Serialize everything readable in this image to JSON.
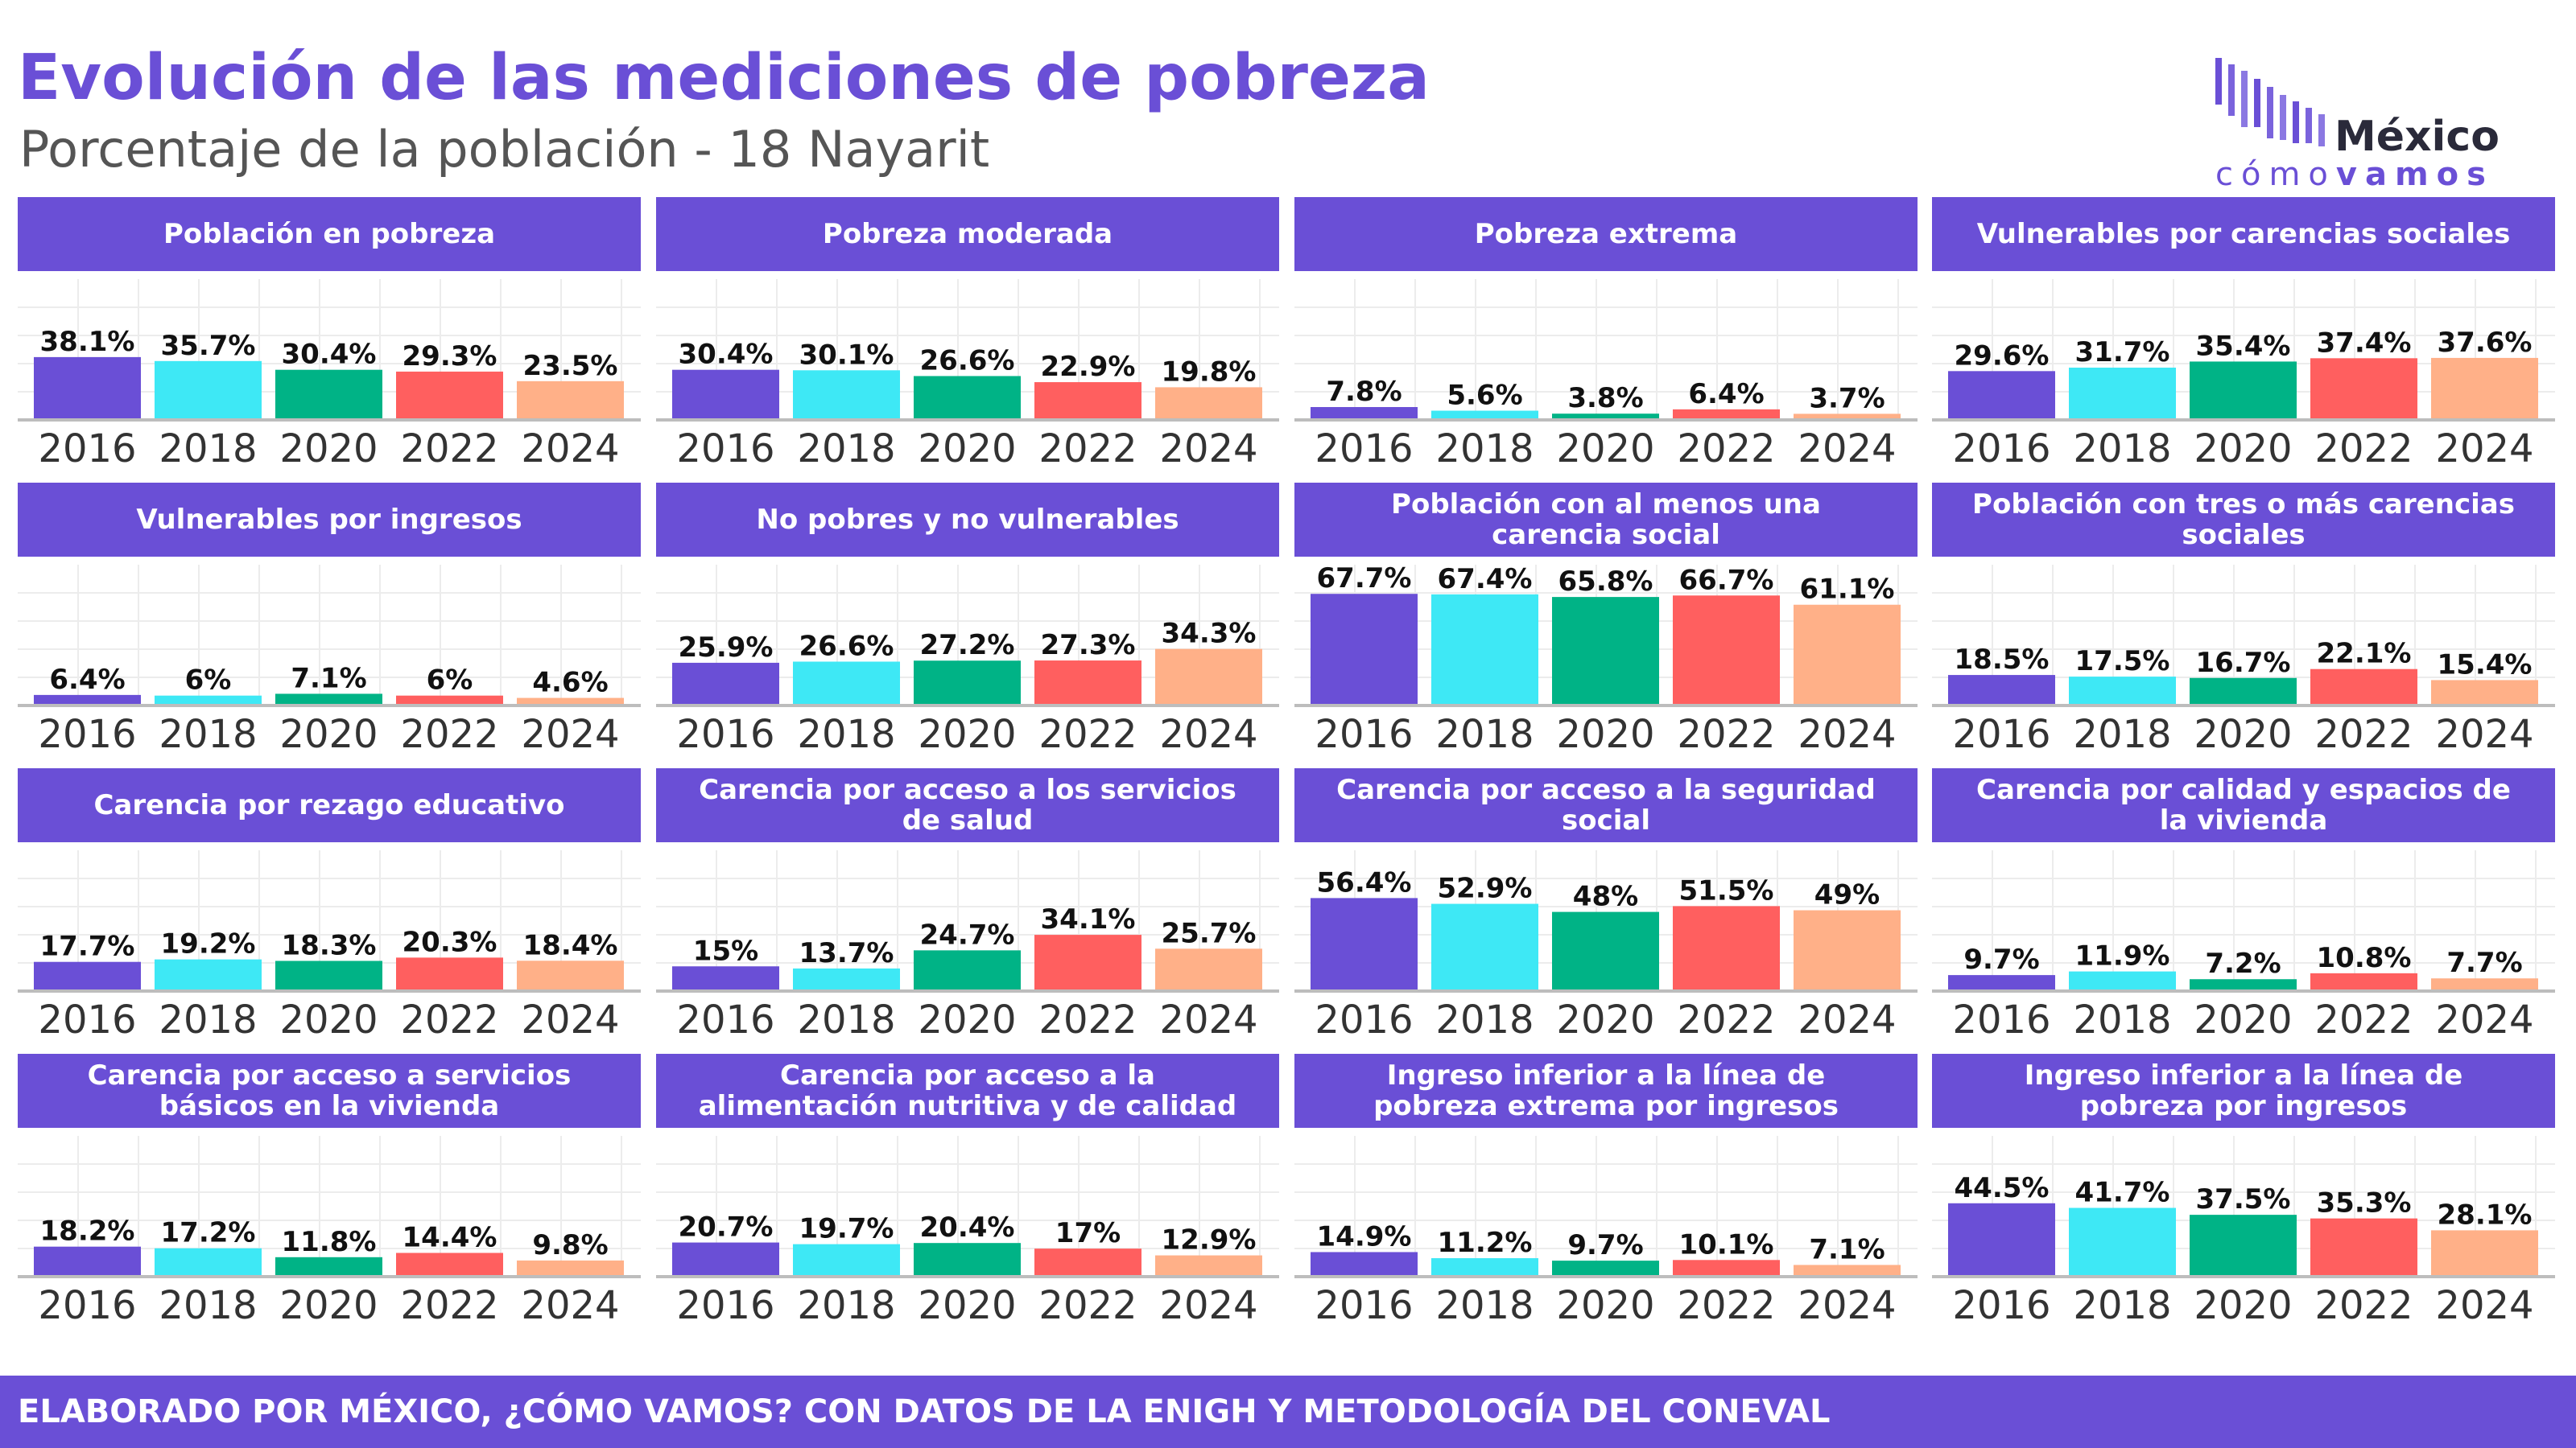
{
  "title": "Evolución de las mediciones de pobreza",
  "subtitle": "Porcentaje de la población - 18 Nayarit",
  "logo": {
    "word1": "México",
    "word2_a": "cómo",
    "word2_b": "vamos"
  },
  "footer": "ELABORADO POR MÉXICO, ¿CÓMO VAMOS? CON DATOS DE LA ENIGH Y METODOLOGÍA DEL CONEVAL",
  "colors": {
    "accent": "#6a4fd6",
    "series": [
      "#6a4fd6",
      "#3ee8f5",
      "#00b386",
      "#ff5f5f",
      "#ffb088"
    ]
  },
  "chart_data": [
    {
      "type": "bar",
      "title": "Población en pobreza",
      "categories": [
        "2016",
        "2018",
        "2020",
        "2022",
        "2024"
      ],
      "values": [
        38.1,
        35.7,
        30.4,
        29.3,
        23.5
      ],
      "labels": [
        "38.1%",
        "35.7%",
        "30.4%",
        "29.3%",
        "23.5%"
      ],
      "ylim": [
        0,
        75
      ]
    },
    {
      "type": "bar",
      "title": "Pobreza moderada",
      "categories": [
        "2016",
        "2018",
        "2020",
        "2022",
        "2024"
      ],
      "values": [
        30.4,
        30.1,
        26.6,
        22.9,
        19.8
      ],
      "labels": [
        "30.4%",
        "30.1%",
        "26.6%",
        "22.9%",
        "19.8%"
      ],
      "ylim": [
        0,
        75
      ]
    },
    {
      "type": "bar",
      "title": "Pobreza extrema",
      "categories": [
        "2016",
        "2018",
        "2020",
        "2022",
        "2024"
      ],
      "values": [
        7.8,
        5.6,
        3.8,
        6.4,
        3.7
      ],
      "labels": [
        "7.8%",
        "5.6%",
        "3.8%",
        "6.4%",
        "3.7%"
      ],
      "ylim": [
        0,
        75
      ]
    },
    {
      "type": "bar",
      "title": "Vulnerables por carencias sociales",
      "categories": [
        "2016",
        "2018",
        "2020",
        "2022",
        "2024"
      ],
      "values": [
        29.6,
        31.7,
        35.4,
        37.4,
        37.6
      ],
      "labels": [
        "29.6%",
        "31.7%",
        "35.4%",
        "37.4%",
        "37.6%"
      ],
      "ylim": [
        0,
        75
      ]
    },
    {
      "type": "bar",
      "title": "Vulnerables por ingresos",
      "categories": [
        "2016",
        "2018",
        "2020",
        "2022",
        "2024"
      ],
      "values": [
        6.4,
        6,
        7.1,
        6,
        4.6
      ],
      "labels": [
        "6.4%",
        "6%",
        "7.1%",
        "6%",
        "4.6%"
      ],
      "ylim": [
        0,
        75
      ]
    },
    {
      "type": "bar",
      "title": "No pobres y no vulnerables",
      "categories": [
        "2016",
        "2018",
        "2020",
        "2022",
        "2024"
      ],
      "values": [
        25.9,
        26.6,
        27.2,
        27.3,
        34.3
      ],
      "labels": [
        "25.9%",
        "26.6%",
        "27.2%",
        "27.3%",
        "34.3%"
      ],
      "ylim": [
        0,
        75
      ]
    },
    {
      "type": "bar",
      "title": "Población con al menos una carencia social",
      "categories": [
        "2016",
        "2018",
        "2020",
        "2022",
        "2024"
      ],
      "values": [
        67.7,
        67.4,
        65.8,
        66.7,
        61.1
      ],
      "labels": [
        "67.7%",
        "67.4%",
        "65.8%",
        "66.7%",
        "61.1%"
      ],
      "ylim": [
        0,
        75
      ]
    },
    {
      "type": "bar",
      "title": "Población con tres o más carencias sociales",
      "categories": [
        "2016",
        "2018",
        "2020",
        "2022",
        "2024"
      ],
      "values": [
        18.5,
        17.5,
        16.7,
        22.1,
        15.4
      ],
      "labels": [
        "18.5%",
        "17.5%",
        "16.7%",
        "22.1%",
        "15.4%"
      ],
      "ylim": [
        0,
        75
      ]
    },
    {
      "type": "bar",
      "title": "Carencia por rezago educativo",
      "categories": [
        "2016",
        "2018",
        "2020",
        "2022",
        "2024"
      ],
      "values": [
        17.7,
        19.2,
        18.3,
        20.3,
        18.4
      ],
      "labels": [
        "17.7%",
        "19.2%",
        "18.3%",
        "20.3%",
        "18.4%"
      ],
      "ylim": [
        0,
        75
      ]
    },
    {
      "type": "bar",
      "title": "Carencia por acceso a los servicios de salud",
      "categories": [
        "2016",
        "2018",
        "2020",
        "2022",
        "2024"
      ],
      "values": [
        15,
        13.7,
        24.7,
        34.1,
        25.7
      ],
      "labels": [
        "15%",
        "13.7%",
        "24.7%",
        "34.1%",
        "25.7%"
      ],
      "ylim": [
        0,
        75
      ]
    },
    {
      "type": "bar",
      "title": "Carencia por acceso a la seguridad social",
      "categories": [
        "2016",
        "2018",
        "2020",
        "2022",
        "2024"
      ],
      "values": [
        56.4,
        52.9,
        48,
        51.5,
        49
      ],
      "labels": [
        "56.4%",
        "52.9%",
        "48%",
        "51.5%",
        "49%"
      ],
      "ylim": [
        0,
        75
      ]
    },
    {
      "type": "bar",
      "title": "Carencia por calidad y espacios de la vivienda",
      "categories": [
        "2016",
        "2018",
        "2020",
        "2022",
        "2024"
      ],
      "values": [
        9.7,
        11.9,
        7.2,
        10.8,
        7.7
      ],
      "labels": [
        "9.7%",
        "11.9%",
        "7.2%",
        "10.8%",
        "7.7%"
      ],
      "ylim": [
        0,
        75
      ]
    },
    {
      "type": "bar",
      "title": "Carencia por acceso a servicios básicos en la vivienda",
      "categories": [
        "2016",
        "2018",
        "2020",
        "2022",
        "2024"
      ],
      "values": [
        18.2,
        17.2,
        11.8,
        14.4,
        9.8
      ],
      "labels": [
        "18.2%",
        "17.2%",
        "11.8%",
        "14.4%",
        "9.8%"
      ],
      "ylim": [
        0,
        75
      ]
    },
    {
      "type": "bar",
      "title": "Carencia por acceso a la alimentación nutritiva y de calidad",
      "categories": [
        "2016",
        "2018",
        "2020",
        "2022",
        "2024"
      ],
      "values": [
        20.7,
        19.7,
        20.4,
        17,
        12.9
      ],
      "labels": [
        "20.7%",
        "19.7%",
        "20.4%",
        "17%",
        "12.9%"
      ],
      "ylim": [
        0,
        75
      ]
    },
    {
      "type": "bar",
      "title": "Ingreso inferior a la línea de pobreza extrema por ingresos",
      "categories": [
        "2016",
        "2018",
        "2020",
        "2022",
        "2024"
      ],
      "values": [
        14.9,
        11.2,
        9.7,
        10.1,
        7.1
      ],
      "labels": [
        "14.9%",
        "11.2%",
        "9.7%",
        "10.1%",
        "7.1%"
      ],
      "ylim": [
        0,
        75
      ]
    },
    {
      "type": "bar",
      "title": "Ingreso inferior a la línea de pobreza por ingresos",
      "categories": [
        "2016",
        "2018",
        "2020",
        "2022",
        "2024"
      ],
      "values": [
        44.5,
        41.7,
        37.5,
        35.3,
        28.1
      ],
      "labels": [
        "44.5%",
        "41.7%",
        "37.5%",
        "35.3%",
        "28.1%"
      ],
      "ylim": [
        0,
        75
      ]
    }
  ]
}
